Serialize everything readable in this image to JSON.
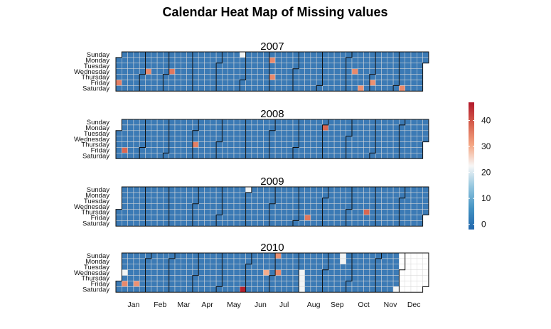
{
  "title": "Calendar Heat Map of Missing values",
  "chart_data": {
    "type": "heatmap",
    "title": "Calendar Heat Map of Missing values",
    "day_labels": [
      "Sunday",
      "Monday",
      "Tuesday",
      "Wednesday",
      "Thursday",
      "Friday",
      "Saturday"
    ],
    "month_labels": [
      "Jan",
      "Feb",
      "Mar",
      "Apr",
      "May",
      "Jun",
      "Jul",
      "Aug",
      "Sep",
      "Oct",
      "Nov",
      "Dec"
    ],
    "years": [
      {
        "year": "2007",
        "default_value": 0,
        "cells": [
          {
            "date": "2007-01-05",
            "value": 35
          },
          {
            "date": "2007-02-07",
            "value": 34
          },
          {
            "date": "2007-03-07",
            "value": 36
          },
          {
            "date": "2007-05-27",
            "value": 22
          },
          {
            "date": "2007-07-02",
            "value": 34
          },
          {
            "date": "2007-07-05",
            "value": 34
          },
          {
            "date": "2007-10-10",
            "value": 34
          },
          {
            "date": "2007-10-20",
            "value": 33
          },
          {
            "date": "2007-11-02",
            "value": 33
          },
          {
            "date": "2007-12-08",
            "value": 34
          }
        ],
        "missing_dates": []
      },
      {
        "year": "2008",
        "default_value": 0,
        "cells": [
          {
            "date": "2008-01-11",
            "value": 38
          },
          {
            "date": "2008-04-03",
            "value": 35
          },
          {
            "date": "2008-09-01",
            "value": 38
          }
        ],
        "missing_dates": []
      },
      {
        "year": "2009",
        "default_value": 0,
        "cells": [
          {
            "date": "2009-05-31",
            "value": 22
          },
          {
            "date": "2009-08-14",
            "value": 36
          },
          {
            "date": "2009-10-22",
            "value": 38
          }
        ],
        "missing_dates": []
      },
      {
        "year": "2010",
        "default_value": 0,
        "cells": [
          {
            "date": "2010-01-06",
            "value": 22
          },
          {
            "date": "2010-01-08",
            "value": 34
          },
          {
            "date": "2010-01-22",
            "value": 33
          },
          {
            "date": "2010-05-29",
            "value": 46
          },
          {
            "date": "2010-06-23",
            "value": 30
          },
          {
            "date": "2010-07-04",
            "value": 33
          },
          {
            "date": "2010-07-07",
            "value": 34
          },
          {
            "date": "2010-08-04",
            "value": 22
          },
          {
            "date": "2010-08-05",
            "value": 22
          },
          {
            "date": "2010-08-06",
            "value": 22
          },
          {
            "date": "2010-08-07",
            "value": 22
          },
          {
            "date": "2010-09-19",
            "value": 22
          },
          {
            "date": "2010-09-20",
            "value": 22
          },
          {
            "date": "2010-11-27",
            "value": 22
          }
        ],
        "missing_from": "2010-11-28"
      }
    ],
    "legend": {
      "placement": "right",
      "range": [
        -2,
        47
      ],
      "ticks": [
        "0",
        "10",
        "20",
        "30",
        "40"
      ],
      "tick_values": [
        0,
        10,
        20,
        30,
        40
      ],
      "colors": [
        "#2166ac",
        "#4393c3",
        "#92c5de",
        "#f7f7f7",
        "#f4a582",
        "#d6604d",
        "#b2182b"
      ]
    }
  }
}
